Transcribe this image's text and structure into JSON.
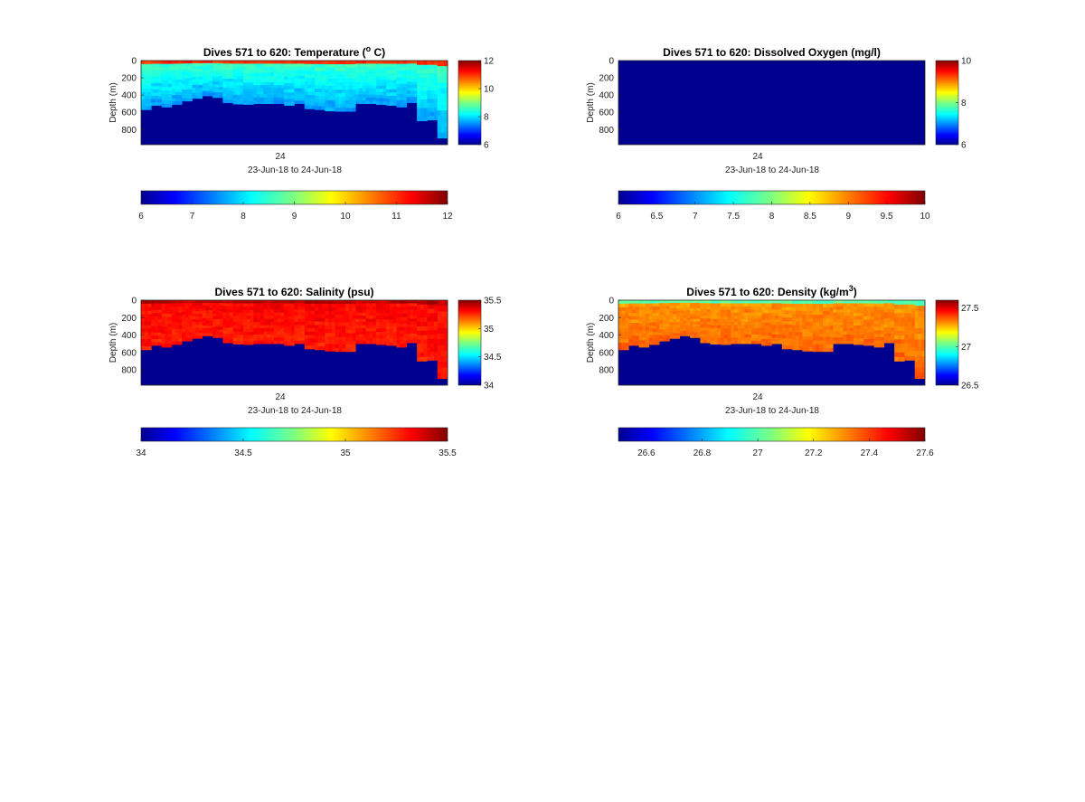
{
  "figure": {
    "background": "#ffffff"
  },
  "chart_data": [
    {
      "type": "heatmap",
      "title_prefix": "Dives 571 to 620: Temperature (",
      "title_sup": "o",
      "title_suffix": " C)",
      "ylabel": "Depth (m)",
      "xtick_label": "24",
      "xlabel": "23-Jun-18 to 24-Jun-18",
      "yticks": [
        0,
        200,
        400,
        600,
        800
      ],
      "ylim": [
        0,
        975
      ],
      "colormap": "jet",
      "field": "temperature",
      "bottom_fill": "#00008f",
      "surface_value": 11,
      "mid_value": 8.6,
      "deep_value": 7.6,
      "clim": [
        6,
        12
      ],
      "colorbar_ticks": [
        6,
        8,
        10,
        12
      ],
      "h_colorbar_ticks": [
        6,
        7,
        8,
        9,
        10,
        11,
        12
      ],
      "profile_depths": [
        570,
        520,
        540,
        510,
        470,
        440,
        410,
        430,
        490,
        505,
        510,
        500,
        500,
        500,
        520,
        500,
        560,
        570,
        585,
        590,
        590,
        500,
        500,
        510,
        520,
        540,
        490,
        700,
        690,
        900
      ]
    },
    {
      "type": "heatmap",
      "title_prefix": "Dives 571 to 620: Dissolved Oxygen (mg/l)",
      "title_sup": "",
      "title_suffix": "",
      "ylabel": "Depth (m)",
      "xtick_label": "24",
      "xlabel": "23-Jun-18 to 24-Jun-18",
      "yticks": [
        0,
        200,
        400,
        600,
        800
      ],
      "ylim": [
        0,
        975
      ],
      "colormap": "jet",
      "field": "oxygen",
      "uniform_fill": "#00008f",
      "clim": [
        6,
        10
      ],
      "colorbar_ticks": [
        6,
        8,
        10
      ],
      "h_colorbar_ticks": [
        6,
        6.5,
        7,
        7.5,
        8,
        8.5,
        9,
        9.5,
        10
      ]
    },
    {
      "type": "heatmap",
      "title_prefix": "Dives 571 to 620: Salinity (psu)",
      "title_sup": "",
      "title_suffix": "",
      "ylabel": "Depth (m)",
      "xtick_label": "24",
      "xlabel": "23-Jun-18 to 24-Jun-18",
      "yticks": [
        0,
        200,
        400,
        600,
        800
      ],
      "ylim": [
        0,
        975
      ],
      "colormap": "jet",
      "field": "salinity",
      "bottom_fill": "#00008f",
      "surface_value": 35.42,
      "mid_value": 35.32,
      "deep_value": 35.28,
      "clim": [
        34,
        35.5
      ],
      "colorbar_ticks": [
        34,
        34.5,
        35,
        35.5
      ],
      "h_colorbar_ticks": [
        34,
        34.5,
        35,
        35.5
      ],
      "profile_depths": [
        570,
        520,
        540,
        510,
        470,
        440,
        410,
        430,
        490,
        505,
        510,
        500,
        500,
        500,
        520,
        500,
        560,
        570,
        585,
        590,
        590,
        500,
        500,
        510,
        520,
        540,
        490,
        700,
        690,
        900
      ]
    },
    {
      "type": "heatmap",
      "title_prefix": "Dives 571 to 620: Density (kg/m",
      "title_sup": "3",
      "title_suffix": ")",
      "ylabel": "Depth (m)",
      "xtick_label": "24",
      "xlabel": "23-Jun-18 to 24-Jun-18",
      "yticks": [
        0,
        200,
        400,
        600,
        800
      ],
      "ylim": [
        0,
        975
      ],
      "colormap": "jet",
      "field": "density",
      "bottom_fill": "#00008f",
      "surface_value": 27.0,
      "mid_value": 27.3,
      "deep_value": 27.35,
      "clim": [
        26.5,
        27.6
      ],
      "colorbar_ticks": [
        26.5,
        27,
        27.5
      ],
      "h_colorbar_ticks": [
        26.6,
        26.8,
        27,
        27.2,
        27.4,
        27.6
      ],
      "profile_depths": [
        570,
        520,
        540,
        510,
        470,
        440,
        410,
        430,
        490,
        505,
        510,
        500,
        500,
        500,
        520,
        500,
        560,
        570,
        585,
        590,
        590,
        500,
        500,
        510,
        520,
        540,
        490,
        700,
        690,
        900
      ]
    }
  ]
}
